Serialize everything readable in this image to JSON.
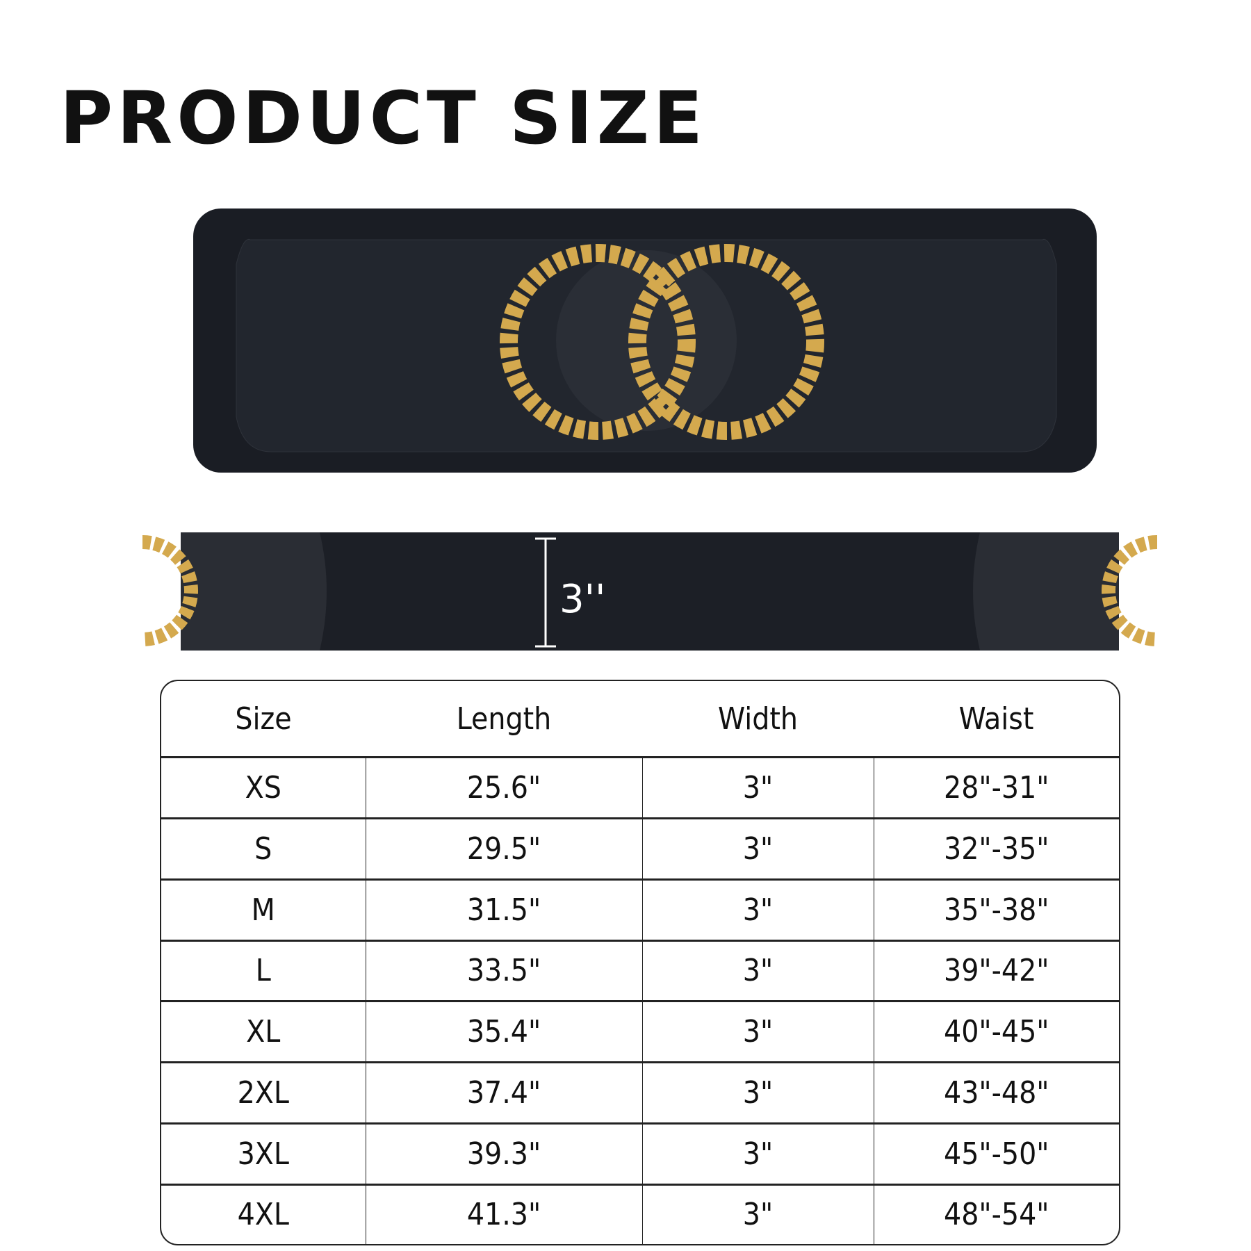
{
  "title": "PRODUCT SIZE",
  "width_annotation": "3''",
  "colors": {
    "belt": "#1c1f26",
    "buckle_gold": "#d4a94e",
    "text": "#111111"
  },
  "table": {
    "headers": [
      "Size",
      "Length",
      "Width",
      "Waist"
    ],
    "rows": [
      [
        "XS",
        "25.6\"",
        "3\"",
        "28\"-31\""
      ],
      [
        "S",
        "29.5\"",
        "3\"",
        "32\"-35\""
      ],
      [
        "M",
        "31.5\"",
        "3\"",
        "35\"-38\""
      ],
      [
        "L",
        "33.5\"",
        "3\"",
        "39\"-42\""
      ],
      [
        "XL",
        "35.4\"",
        "3\"",
        "40\"-45\""
      ],
      [
        "2XL",
        "37.4\"",
        "3\"",
        "43\"-48\""
      ],
      [
        "3XL",
        "39.3\"",
        "3\"",
        "45\"-50\""
      ],
      [
        "4XL",
        "41.3\"",
        "3\"",
        "48\"-54\""
      ]
    ]
  }
}
